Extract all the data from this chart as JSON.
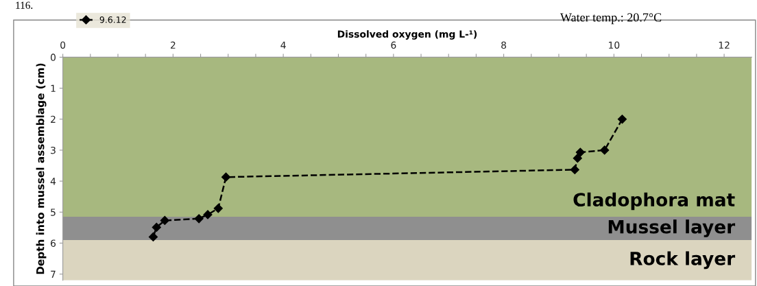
{
  "chart_data": {
    "type": "line",
    "xlabel": "Dissolved oxygen (mg L-¹)",
    "ylabel": "Depth into mussel assemblage (cm)",
    "annotations": [
      "Water temp.: 20.7°C",
      "116."
    ],
    "series": [
      {
        "name": "9.6.12",
        "color": "#000000",
        "x": [
          10.15,
          9.83,
          9.39,
          9.34,
          9.29,
          2.96,
          2.82,
          2.63,
          2.47,
          1.85,
          1.7,
          1.64
        ],
        "values": [
          2.0,
          3.0,
          3.07,
          3.26,
          3.63,
          3.87,
          4.88,
          5.08,
          5.21,
          5.27,
          5.49,
          5.8
        ]
      }
    ],
    "bands": [
      {
        "axis": "y",
        "from": 0,
        "to": 5.15,
        "label": "Cladophora mat",
        "color": "#a7b87f"
      },
      {
        "axis": "y",
        "from": 5.15,
        "to": 5.9,
        "label": "Mussel layer",
        "color": "#8f8f8f"
      },
      {
        "axis": "y",
        "from": 5.9,
        "to": 7.2,
        "label": "Rock layer",
        "color": "#dbd5bf"
      }
    ],
    "xlim": [
      0,
      12.5
    ],
    "xticks": [
      0,
      {
        "value": 0.5,
        "label": null
      },
      {
        "value": 1,
        "label": null
      },
      {
        "value": 1.5,
        "label": null
      },
      2,
      {
        "value": 2.5,
        "label": null
      },
      {
        "value": 3,
        "label": null
      },
      {
        "value": 3.5,
        "label": null
      },
      4,
      {
        "value": 4.5,
        "label": null
      },
      {
        "value": 5,
        "label": null
      },
      {
        "value": 5.5,
        "label": null
      },
      6,
      {
        "value": 6.5,
        "label": null
      },
      {
        "value": 7,
        "label": null
      },
      {
        "value": 7.5,
        "label": null
      },
      8,
      {
        "value": 8.5,
        "label": null
      },
      {
        "value": 9,
        "label": null
      },
      {
        "value": 9.5,
        "label": null
      },
      10,
      {
        "value": 10.5,
        "label": null
      },
      {
        "value": 11,
        "label": null
      },
      {
        "value": 11.5,
        "label": null
      },
      12
    ],
    "ylim": [
      7.2,
      0
    ],
    "yticks": [
      0,
      1,
      2,
      3,
      4,
      5,
      6,
      7
    ],
    "grid": false,
    "legend": "top left",
    "marker": "diamond",
    "line_style": "dashed"
  }
}
